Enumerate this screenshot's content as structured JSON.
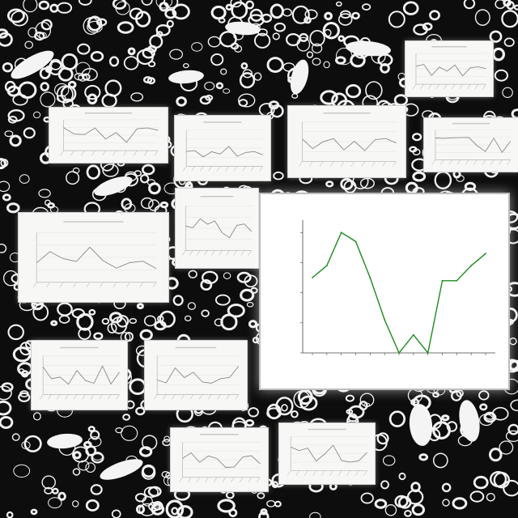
{
  "scene": {
    "background_color": "#0d0d0d",
    "pattern": "white-rings-and-doodles",
    "card_count": 14
  },
  "chart_data": {
    "type": "line",
    "title": "",
    "xlabel": "",
    "ylabel": "",
    "x": [
      1,
      2,
      3,
      4,
      5,
      6,
      7,
      8,
      9,
      10,
      11,
      12,
      13
    ],
    "series": [
      {
        "color": "#1f8a1f",
        "values": [
          50,
          58,
          80,
          74,
          50,
          22,
          0,
          12,
          0,
          48,
          48,
          58,
          66
        ]
      }
    ],
    "ylim": [
      0,
      85
    ],
    "grid": false,
    "legend": "none"
  }
}
